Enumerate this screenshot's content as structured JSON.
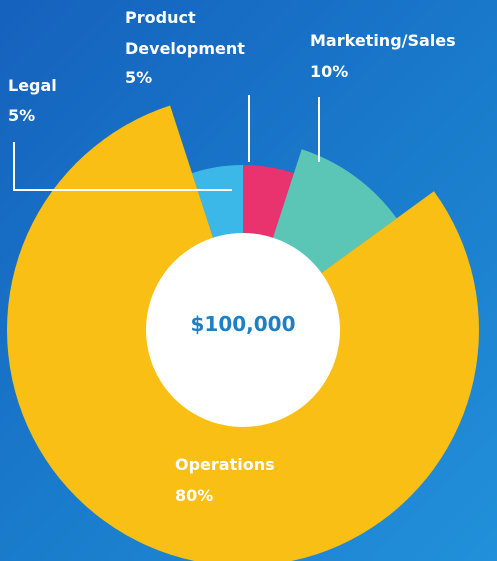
{
  "chart_data": {
    "type": "pie",
    "center_label": "$100,000",
    "categories": [
      "Legal",
      "Product Development",
      "Marketing/Sales",
      "Operations"
    ],
    "values": [
      5,
      5,
      10,
      80
    ],
    "value_labels": [
      "5%",
      "5%",
      "10%",
      "80%"
    ],
    "colors": [
      "#3bb8e8",
      "#e8336e",
      "#5cc6b6",
      "#f9bf14"
    ]
  }
}
